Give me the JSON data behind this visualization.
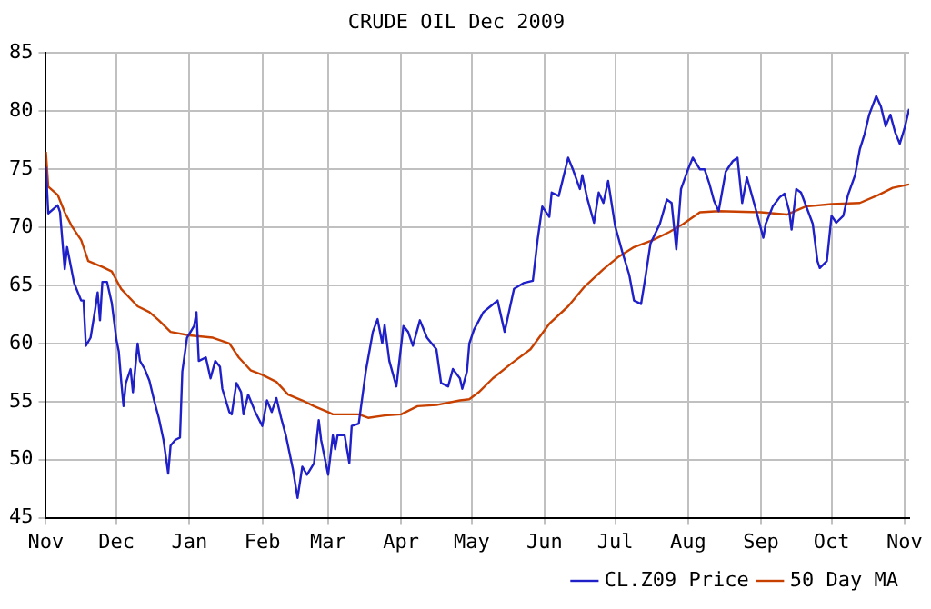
{
  "chart_data": {
    "type": "line",
    "title": "CRUDE OIL Dec 2009",
    "xlim": [
      "2008-11-01",
      "2009-11-03"
    ],
    "xticks": [
      {
        "value": "2008-11-01",
        "label": "Nov"
      },
      {
        "value": "2008-12-01",
        "label": "Dec"
      },
      {
        "value": "2009-01-01",
        "label": "Jan"
      },
      {
        "value": "2009-02-01",
        "label": "Feb"
      },
      {
        "value": "2009-03-01",
        "label": "Mar"
      },
      {
        "value": "2009-04-01",
        "label": "Apr"
      },
      {
        "value": "2009-05-01",
        "label": "May"
      },
      {
        "value": "2009-06-01",
        "label": "Jun"
      },
      {
        "value": "2009-07-01",
        "label": "Jul"
      },
      {
        "value": "2009-08-01",
        "label": "Aug"
      },
      {
        "value": "2009-09-01",
        "label": "Sep"
      },
      {
        "value": "2009-10-01",
        "label": "Oct"
      },
      {
        "value": "2009-11-01",
        "label": "Nov"
      }
    ],
    "ylim": [
      45,
      85
    ],
    "yticks": [
      45,
      50,
      55,
      60,
      65,
      70,
      75,
      80,
      85
    ],
    "grid": true,
    "legend": "bottom right",
    "marker": "none",
    "line_style": "solid",
    "series": [
      {
        "name": "CL.Z09 Price",
        "color": "#2020c8",
        "x": [
          "2008-11-01",
          "2008-11-02",
          "2008-11-06",
          "2008-11-07",
          "2008-11-09",
          "2008-11-10",
          "2008-11-13",
          "2008-11-16",
          "2008-11-17",
          "2008-11-18",
          "2008-11-20",
          "2008-11-22",
          "2008-11-23",
          "2008-11-24",
          "2008-11-25",
          "2008-11-27",
          "2008-11-29",
          "2008-12-01",
          "2008-12-02",
          "2008-12-03",
          "2008-12-04",
          "2008-12-05",
          "2008-12-07",
          "2008-12-08",
          "2008-12-10",
          "2008-12-11",
          "2008-12-13",
          "2008-12-15",
          "2008-12-17",
          "2008-12-19",
          "2008-12-21",
          "2008-12-23",
          "2008-12-24",
          "2008-12-26",
          "2008-12-28",
          "2008-12-29",
          "2008-12-31",
          "2009-01-03",
          "2009-01-04",
          "2009-01-05",
          "2009-01-08",
          "2009-01-10",
          "2009-01-12",
          "2009-01-14",
          "2009-01-15",
          "2009-01-18",
          "2009-01-19",
          "2009-01-21",
          "2009-01-23",
          "2009-01-24",
          "2009-01-26",
          "2009-01-29",
          "2009-02-01",
          "2009-02-03",
          "2009-02-05",
          "2009-02-07",
          "2009-02-09",
          "2009-02-11",
          "2009-02-14",
          "2009-02-16",
          "2009-02-18",
          "2009-02-20",
          "2009-02-23",
          "2009-02-25",
          "2009-02-26",
          "2009-03-01",
          "2009-03-03",
          "2009-03-04",
          "2009-03-05",
          "2009-03-08",
          "2009-03-10",
          "2009-03-11",
          "2009-03-14",
          "2009-03-15",
          "2009-03-17",
          "2009-03-20",
          "2009-03-22",
          "2009-03-24",
          "2009-03-25",
          "2009-03-27",
          "2009-03-30",
          "2009-04-02",
          "2009-04-04",
          "2009-04-06",
          "2009-04-09",
          "2009-04-12",
          "2009-04-16",
          "2009-04-18",
          "2009-04-21",
          "2009-04-23",
          "2009-04-26",
          "2009-04-27",
          "2009-04-29",
          "2009-04-30",
          "2009-05-02",
          "2009-05-06",
          "2009-05-09",
          "2009-05-12",
          "2009-05-15",
          "2009-05-19",
          "2009-05-23",
          "2009-05-27",
          "2009-05-29",
          "2009-05-31",
          "2009-06-03",
          "2009-06-04",
          "2009-06-07",
          "2009-06-11",
          "2009-06-13",
          "2009-06-16",
          "2009-06-17",
          "2009-06-19",
          "2009-06-22",
          "2009-06-24",
          "2009-06-26",
          "2009-06-28",
          "2009-07-01",
          "2009-07-04",
          "2009-07-07",
          "2009-07-09",
          "2009-07-12",
          "2009-07-14",
          "2009-07-16",
          "2009-07-20",
          "2009-07-23",
          "2009-07-25",
          "2009-07-27",
          "2009-07-29",
          "2009-08-01",
          "2009-08-03",
          "2009-08-06",
          "2009-08-08",
          "2009-08-10",
          "2009-08-12",
          "2009-08-14",
          "2009-08-17",
          "2009-08-20",
          "2009-08-22",
          "2009-08-24",
          "2009-08-26",
          "2009-08-30",
          "2009-09-02",
          "2009-09-03",
          "2009-09-06",
          "2009-09-09",
          "2009-09-11",
          "2009-09-13",
          "2009-09-14",
          "2009-09-16",
          "2009-09-18",
          "2009-09-21",
          "2009-09-23",
          "2009-09-25",
          "2009-09-26",
          "2009-09-29",
          "2009-10-01",
          "2009-10-03",
          "2009-10-06",
          "2009-10-08",
          "2009-10-11",
          "2009-10-13",
          "2009-10-15",
          "2009-10-17",
          "2009-10-20",
          "2009-10-22",
          "2009-10-24",
          "2009-10-26",
          "2009-10-28",
          "2009-10-30",
          "2009-11-01",
          "2009-11-03"
        ],
        "values": [
          75.2,
          71.2,
          71.9,
          71.3,
          66.4,
          68.3,
          65.2,
          63.7,
          63.7,
          59.8,
          60.5,
          63.0,
          64.4,
          62.0,
          65.3,
          65.3,
          63.5,
          60.3,
          59.3,
          56.8,
          54.6,
          56.6,
          57.8,
          55.8,
          60.0,
          58.5,
          57.8,
          56.8,
          55.1,
          53.6,
          51.7,
          48.8,
          51.2,
          51.7,
          51.9,
          57.6,
          60.5,
          61.5,
          62.7,
          58.5,
          58.8,
          57.0,
          58.5,
          58.0,
          56.1,
          54.1,
          53.9,
          56.6,
          55.8,
          53.9,
          55.6,
          54.1,
          52.9,
          55.1,
          54.1,
          55.3,
          53.6,
          52.1,
          49.2,
          46.7,
          49.4,
          48.7,
          49.7,
          53.4,
          51.7,
          48.7,
          52.1,
          50.9,
          52.1,
          52.1,
          49.7,
          52.9,
          53.1,
          54.6,
          57.6,
          61.0,
          62.1,
          60.0,
          61.6,
          58.5,
          56.3,
          61.5,
          61.0,
          59.8,
          62.0,
          60.5,
          59.5,
          56.6,
          56.3,
          57.8,
          57.0,
          56.1,
          57.6,
          60.0,
          61.2,
          62.7,
          63.2,
          63.7,
          61.0,
          64.7,
          65.2,
          65.4,
          68.9,
          71.8,
          70.9,
          73.0,
          72.7,
          76.0,
          75.0,
          73.3,
          74.5,
          72.6,
          70.4,
          73.0,
          72.1,
          74.0,
          70.1,
          67.9,
          65.9,
          63.7,
          63.4,
          65.9,
          68.6,
          70.3,
          72.4,
          72.1,
          68.1,
          73.3,
          75.0,
          76.0,
          75.0,
          75.0,
          73.8,
          72.3,
          71.4,
          74.8,
          75.7,
          76.0,
          72.1,
          74.3,
          71.4,
          69.1,
          70.3,
          71.8,
          72.6,
          72.9,
          71.4,
          69.8,
          73.3,
          73.0,
          71.4,
          70.3,
          67.1,
          66.5,
          67.1,
          71.0,
          70.4,
          71.0,
          72.8,
          74.5,
          76.7,
          78.0,
          79.7,
          81.3,
          80.4,
          78.7,
          79.7,
          78.2,
          77.2,
          78.5,
          80.2
        ]
      },
      {
        "name": "50 Day MA",
        "color": "#c84000",
        "x": [
          "2008-11-01",
          "2008-11-02",
          "2008-11-06",
          "2008-11-09",
          "2008-11-12",
          "2008-11-16",
          "2008-11-19",
          "2008-11-25",
          "2008-11-29",
          "2008-12-03",
          "2008-12-10",
          "2008-12-15",
          "2008-12-19",
          "2008-12-24",
          "2009-01-01",
          "2009-01-11",
          "2009-01-18",
          "2009-01-22",
          "2009-01-27",
          "2009-02-01",
          "2009-02-07",
          "2009-02-12",
          "2009-02-18",
          "2009-02-23",
          "2009-03-01",
          "2009-03-03",
          "2009-03-14",
          "2009-03-18",
          "2009-03-25",
          "2009-04-01",
          "2009-04-08",
          "2009-04-16",
          "2009-04-26",
          "2009-04-30",
          "2009-05-04",
          "2009-05-10",
          "2009-05-18",
          "2009-05-26",
          "2009-06-03",
          "2009-06-11",
          "2009-06-18",
          "2009-06-26",
          "2009-07-02",
          "2009-07-09",
          "2009-07-17",
          "2009-07-24",
          "2009-07-30",
          "2009-08-06",
          "2009-08-14",
          "2009-09-01",
          "2009-09-12",
          "2009-09-20",
          "2009-10-01",
          "2009-10-13",
          "2009-10-21",
          "2009-10-27",
          "2009-11-03"
        ],
        "values": [
          76.5,
          73.5,
          72.8,
          71.3,
          70.1,
          68.9,
          67.1,
          66.6,
          66.2,
          64.7,
          63.2,
          62.7,
          62.0,
          61.0,
          60.7,
          60.5,
          60.0,
          58.8,
          57.7,
          57.3,
          56.7,
          55.6,
          55.1,
          54.6,
          54.1,
          53.9,
          53.9,
          53.6,
          53.8,
          53.9,
          54.6,
          54.7,
          55.1,
          55.2,
          55.8,
          57.0,
          58.3,
          59.5,
          61.7,
          63.2,
          64.9,
          66.4,
          67.4,
          68.3,
          68.9,
          69.6,
          70.3,
          71.3,
          71.4,
          71.3,
          71.1,
          71.8,
          72.0,
          72.1,
          72.8,
          73.4,
          73.7
        ]
      }
    ]
  }
}
